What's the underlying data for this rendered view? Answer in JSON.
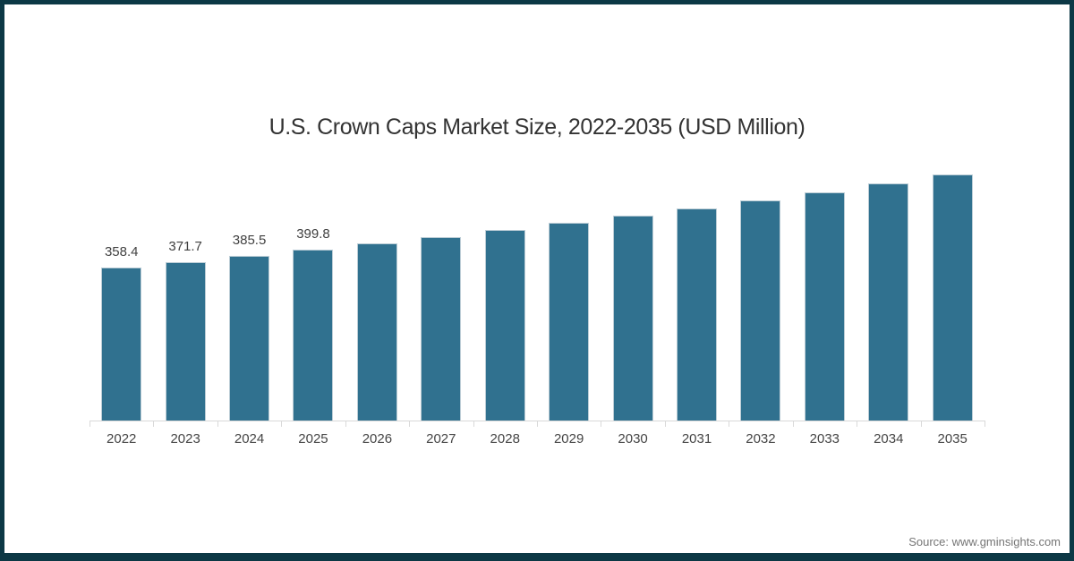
{
  "title": "U.S. Crown Caps Market Size, 2022-2035 (USD Million)",
  "source_text": "Source: www.gminsights.com",
  "colors": {
    "bar_fill": "#30718F",
    "bar_stroke": "#BCCDD6",
    "frame": "#0C3845",
    "axis_line": "#D9D9D9",
    "title_text": "#333333",
    "value_label_text": "#404040",
    "axis_label_text": "#444444",
    "source_text": "#757575"
  },
  "chart_data": {
    "type": "bar",
    "title": "U.S. Crown Caps Market Size, 2022-2035 (USD Million)",
    "categories": [
      "2022",
      "2023",
      "2024",
      "2025",
      "2026",
      "2027",
      "2028",
      "2029",
      "2030",
      "2031",
      "2032",
      "2033",
      "2034",
      "2035"
    ],
    "values": [
      358.4,
      371.7,
      385.5,
      399.8,
      414.6,
      430.0,
      446.0,
      462.5,
      479.7,
      497.5,
      515.9,
      535.1,
      555.0,
      575.6
    ],
    "data_labels": [
      "358.4",
      "371.7",
      "385.5",
      "399.8",
      "",
      "",
      "",
      "",
      "",
      "",
      "",
      "",
      "",
      ""
    ],
    "xlabel": "",
    "ylabel": "",
    "ylim": [
      0,
      600
    ],
    "grid": false,
    "legend": false,
    "bar_color": "#30718F"
  }
}
